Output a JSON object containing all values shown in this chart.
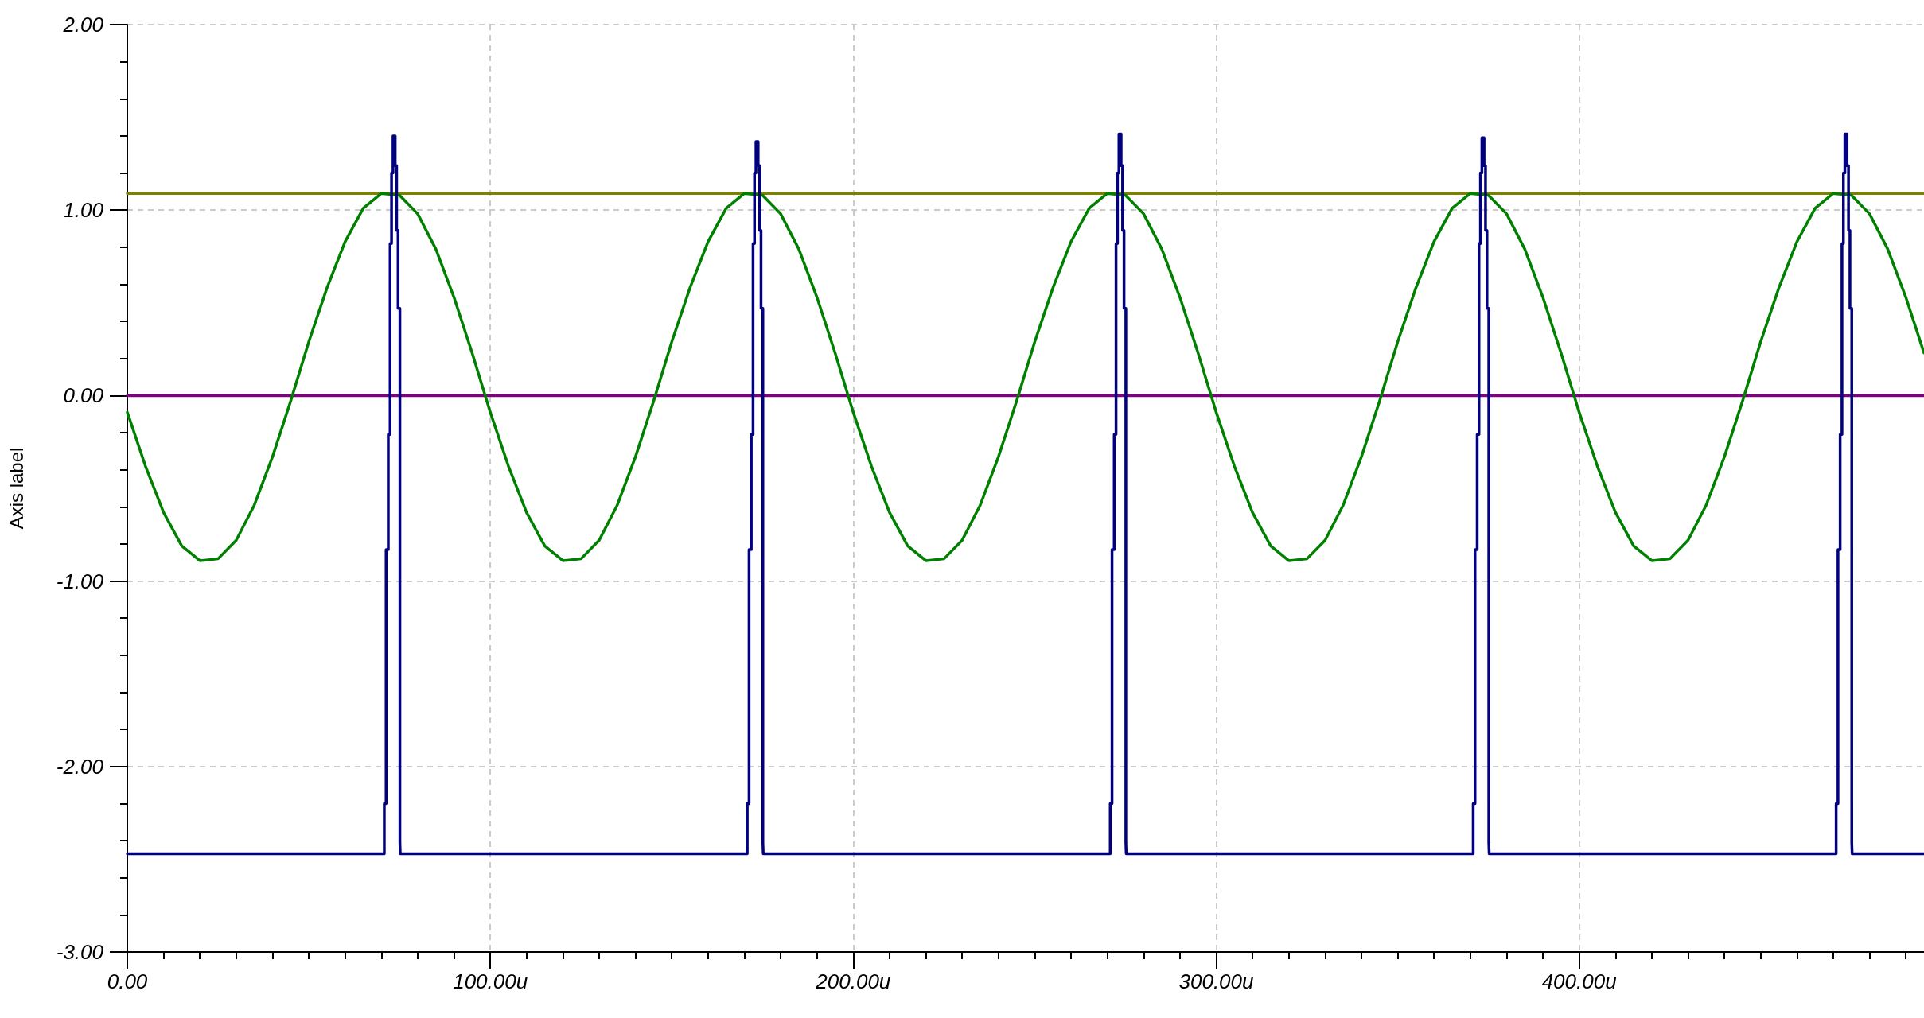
{
  "chart_data": {
    "type": "line",
    "ylabel": "Axis label",
    "xlim": [
      0,
      495
    ],
    "ylim": [
      -3,
      2
    ],
    "xticks": [
      {
        "value": 0,
        "label": "0.00"
      },
      {
        "value": 100,
        "label": "100.00u"
      },
      {
        "value": 200,
        "label": "200.00u"
      },
      {
        "value": 300,
        "label": "300.00u"
      },
      {
        "value": 400,
        "label": "400.00u"
      }
    ],
    "yticks": [
      {
        "value": -3,
        "label": "-3.00"
      },
      {
        "value": -2,
        "label": "-2.00"
      },
      {
        "value": -1,
        "label": "-1.00"
      },
      {
        "value": 0,
        "label": "0.00"
      },
      {
        "value": 1,
        "label": "1.00"
      },
      {
        "value": 2,
        "label": "2.00"
      }
    ],
    "grid": true,
    "marker": "none",
    "line_style": "solid",
    "series": [
      {
        "color": "#808000",
        "x": [
          0,
          495
        ],
        "values": [
          1.09,
          1.09
        ]
      },
      {
        "color": "#800080",
        "x": [
          0,
          495
        ],
        "values": [
          0,
          0
        ]
      },
      {
        "color": "#008000",
        "x": [
          0,
          5,
          10,
          15,
          20,
          25,
          30,
          35,
          40,
          45,
          50,
          55,
          60,
          65,
          70,
          75,
          80,
          85,
          90,
          95,
          100,
          105,
          110,
          115,
          120,
          125,
          130,
          135,
          140,
          145,
          150,
          155,
          160,
          165,
          170,
          175,
          180,
          185,
          190,
          195,
          200,
          205,
          210,
          215,
          220,
          225,
          230,
          235,
          240,
          245,
          250,
          255,
          260,
          265,
          270,
          275,
          280,
          285,
          290,
          295,
          300,
          305,
          310,
          315,
          320,
          325,
          330,
          335,
          340,
          345,
          350,
          355,
          360,
          365,
          370,
          375,
          380,
          385,
          390,
          395,
          400,
          405,
          410,
          415,
          420,
          425,
          430,
          435,
          440,
          445,
          450,
          455,
          460,
          465,
          470,
          475,
          480,
          485,
          490,
          495
        ],
        "values": [
          -0.09,
          -0.38,
          -0.63,
          -0.81,
          -0.89,
          -0.88,
          -0.78,
          -0.59,
          -0.33,
          -0.03,
          0.29,
          0.58,
          0.83,
          1.01,
          1.09,
          1.08,
          0.98,
          0.79,
          0.53,
          0.23,
          -0.09,
          -0.38,
          -0.63,
          -0.81,
          -0.89,
          -0.88,
          -0.78,
          -0.59,
          -0.33,
          -0.03,
          0.29,
          0.58,
          0.83,
          1.01,
          1.09,
          1.08,
          0.98,
          0.79,
          0.53,
          0.23,
          -0.09,
          -0.38,
          -0.63,
          -0.81,
          -0.89,
          -0.88,
          -0.78,
          -0.59,
          -0.33,
          -0.03,
          0.29,
          0.58,
          0.83,
          1.01,
          1.09,
          1.08,
          0.98,
          0.79,
          0.53,
          0.23,
          -0.09,
          -0.38,
          -0.63,
          -0.81,
          -0.89,
          -0.88,
          -0.78,
          -0.59,
          -0.33,
          -0.03,
          0.29,
          0.58,
          0.83,
          1.01,
          1.09,
          1.08,
          0.98,
          0.79,
          0.53,
          0.23,
          -0.09,
          -0.38,
          -0.63,
          -0.81,
          -0.89,
          -0.88,
          -0.78,
          -0.59,
          -0.33,
          -0.03,
          0.29,
          0.58,
          0.83,
          1.01,
          1.09,
          1.08,
          0.98,
          0.79,
          0.53,
          0.23
        ]
      },
      {
        "type": "step",
        "color": "#000080",
        "x": [
          0,
          70.8,
          71.3,
          71.9,
          72.4,
          72.8,
          73.2,
          73.8,
          74.2,
          74.6,
          75.1,
          75.2,
          170.8,
          171.3,
          171.9,
          172.4,
          172.8,
          173.2,
          173.8,
          174.2,
          174.6,
          175.1,
          175.2,
          270.8,
          271.3,
          271.9,
          272.4,
          272.8,
          273.2,
          273.8,
          274.2,
          274.6,
          275.1,
          275.2,
          370.8,
          371.3,
          371.9,
          372.4,
          372.8,
          373.2,
          373.8,
          374.2,
          374.6,
          375.1,
          375.2,
          470.8,
          471.3,
          471.9,
          472.4,
          472.8,
          473.2,
          473.8,
          474.2,
          474.6,
          475.1,
          475.2,
          495
        ],
        "values": [
          -2.47,
          -2.2,
          -0.83,
          -0.21,
          0.82,
          1.2,
          1.4,
          1.24,
          0.89,
          0.47,
          -2.41,
          -2.47,
          -2.2,
          -0.83,
          -0.21,
          0.82,
          1.2,
          1.37,
          1.24,
          0.89,
          0.47,
          -2.41,
          -2.47,
          -2.2,
          -0.83,
          -0.21,
          0.82,
          1.2,
          1.41,
          1.24,
          0.89,
          0.47,
          -2.41,
          -2.47,
          -2.2,
          -0.83,
          -0.21,
          0.82,
          1.2,
          1.39,
          1.24,
          0.89,
          0.47,
          -2.41,
          -2.47,
          -2.2,
          -0.83,
          -0.21,
          0.82,
          1.2,
          1.41,
          1.24,
          0.89,
          0.47,
          -2.41,
          -2.47,
          -2.47
        ]
      }
    ]
  }
}
